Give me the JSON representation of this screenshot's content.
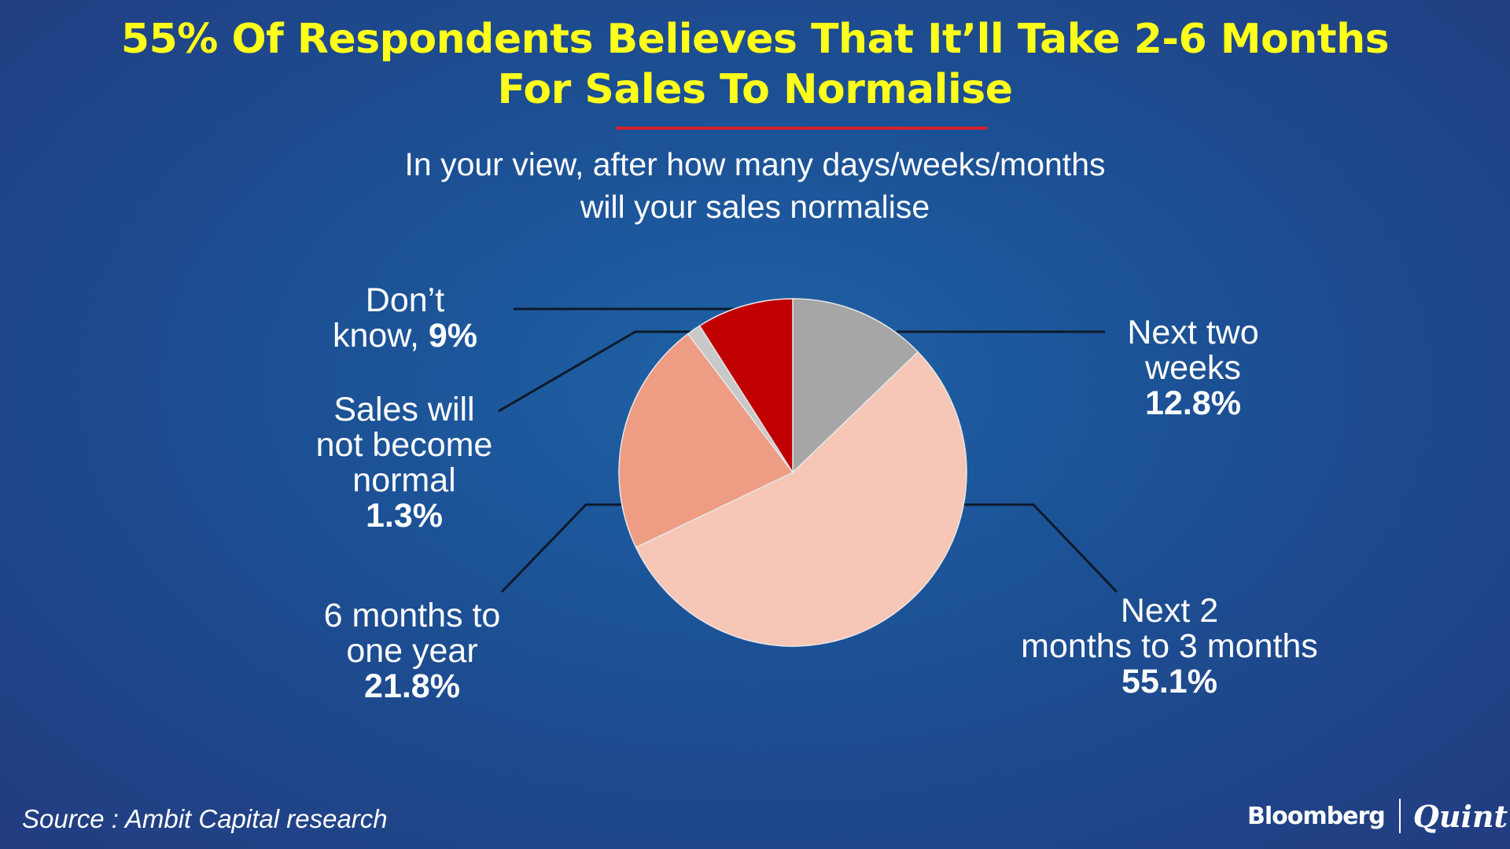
{
  "title": {
    "line1": "55% Of Respondents Believes That It’ll Take 2-6  Months",
    "line2": "For Sales To  Normalise"
  },
  "subtitle": {
    "line1": "In your view, after how many days/weeks/months",
    "line2": "will your sales normalise"
  },
  "chart_data": {
    "type": "pie",
    "title": "55% Of Respondents Believes That It’ll Take 2-6  Months For Sales To  Normalise",
    "subtitle": "In your view, after how many days/weeks/months will your sales normalise",
    "start_angle_deg": 0,
    "direction": "clockwise",
    "slices": [
      {
        "id": "next-two-weeks",
        "label": "Next two weeks",
        "label_lines": [
          "Next two",
          "weeks"
        ],
        "value": 12.8,
        "value_text": "12.8%",
        "color": "#a6a6a6"
      },
      {
        "id": "two-to-three-months",
        "label": "Next 2 months to 3 months",
        "label_lines": [
          "Next 2",
          "months to 3 months"
        ],
        "value": 55.1,
        "value_text": "55.1%",
        "color": "#f6c6b6"
      },
      {
        "id": "six-months-to-year",
        "label": "6 months to one year",
        "label_lines": [
          "6 months to",
          "one year"
        ],
        "value": 21.8,
        "value_text": "21.8%",
        "color": "#ef9c84"
      },
      {
        "id": "not-normal",
        "label": "Sales will not become normal",
        "label_lines": [
          "Sales will",
          "not become",
          "normal"
        ],
        "value": 1.3,
        "value_text": "1.3%",
        "color": "#c8c8c8"
      },
      {
        "id": "dont-know",
        "label": "Don’t know",
        "label_lines": [
          "Don’t",
          "know, "
        ],
        "value": 9,
        "value_text": "9%",
        "color": "#c00000"
      }
    ]
  },
  "footer": {
    "source": "Source : Ambit Capital research",
    "brand_left": "Bloomberg",
    "brand_right": "Quint"
  },
  "colors": {
    "title": "#ffff1a",
    "title_rule": "#d51f2b",
    "leader_line": "#0d1a2a"
  }
}
